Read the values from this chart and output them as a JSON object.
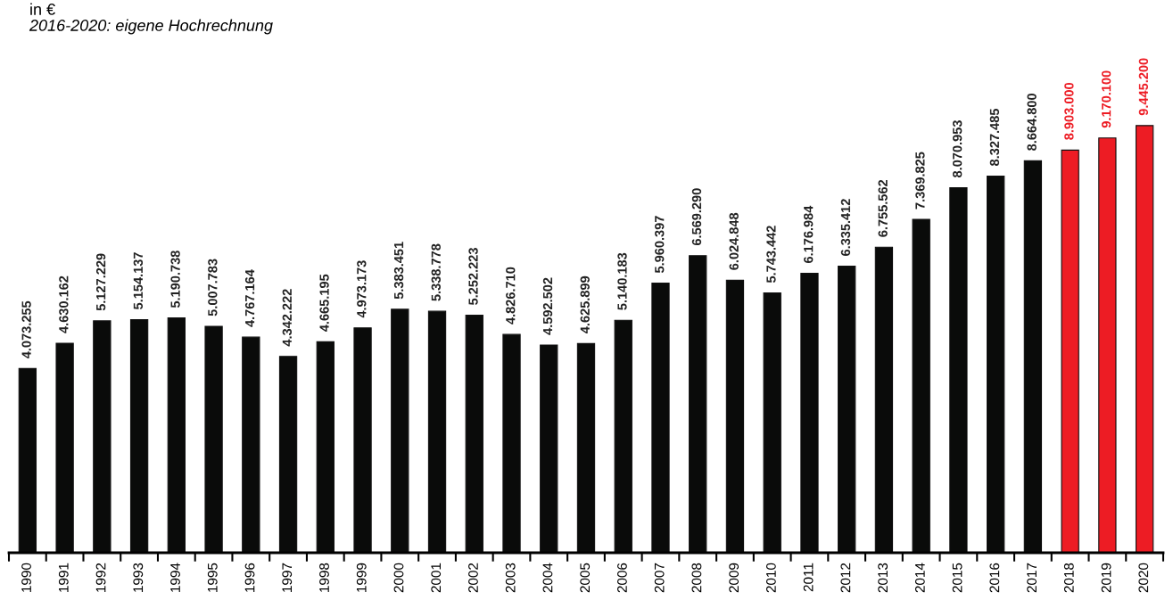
{
  "chart_data": {
    "type": "bar",
    "subtitle": "2016-2020: eigene Hochrechnung",
    "annotations": [
      "in €"
    ],
    "categories": [
      "1990",
      "1991",
      "1992",
      "1993",
      "1994",
      "1995",
      "1996",
      "1997",
      "1998",
      "1999",
      "2000",
      "2001",
      "2002",
      "2003",
      "2004",
      "2005",
      "2006",
      "2007",
      "2008",
      "2009",
      "2010",
      "2011",
      "2012",
      "2013",
      "2014",
      "2015",
      "2016",
      "2017",
      "2018",
      "2019",
      "2020"
    ],
    "values": [
      4073255,
      4630162,
      5127229,
      5154137,
      5190738,
      5007783,
      4767164,
      4342222,
      4665195,
      4973173,
      5383451,
      5338778,
      5252223,
      4826710,
      4592502,
      4625899,
      5140183,
      5960397,
      6569290,
      6024848,
      5743442,
      6176984,
      6335412,
      6755562,
      7369825,
      8070953,
      8327485,
      8664800,
      8903000,
      9170100,
      9445200
    ],
    "value_labels": [
      "4.073.255",
      "4.630.162",
      "5.127.229",
      "5.154.137",
      "5.190.738",
      "5.007.783",
      "4.767.164",
      "4.342.222",
      "4.665.195",
      "4.973.173",
      "5.383.451",
      "5.338.778",
      "5.252.223",
      "4.826.710",
      "4.592.502",
      "4.625.899",
      "5.140.183",
      "5.960.397",
      "6.569.290",
      "6.024.848",
      "5.743.442",
      "6.176.984",
      "6.335.412",
      "6.755.562",
      "7.369.825",
      "8.070.953",
      "8.327.485",
      "8.664.800",
      "8.903.000",
      "9.170.100",
      "9.445.200"
    ],
    "colors": [
      "#0a0b0a",
      "#0a0b0a",
      "#0a0b0a",
      "#0a0b0a",
      "#0a0b0a",
      "#0a0b0a",
      "#0a0b0a",
      "#0a0b0a",
      "#0a0b0a",
      "#0a0b0a",
      "#0a0b0a",
      "#0a0b0a",
      "#0a0b0a",
      "#0a0b0a",
      "#0a0b0a",
      "#0a0b0a",
      "#0a0b0a",
      "#0a0b0a",
      "#0a0b0a",
      "#0a0b0a",
      "#0a0b0a",
      "#0a0b0a",
      "#0a0b0a",
      "#0a0b0a",
      "#0a0b0a",
      "#0a0b0a",
      "#0a0b0a",
      "#0a0b0a",
      "#ed1c24",
      "#ed1c24",
      "#ed1c24"
    ],
    "tick_labels": "x"
  }
}
